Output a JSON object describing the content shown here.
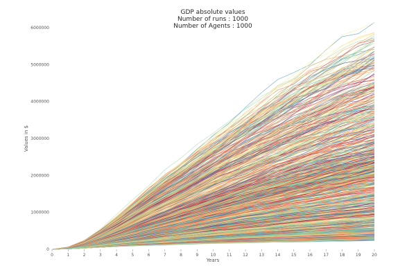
{
  "chart_data": {
    "type": "line",
    "title": [
      "GDP absolute values",
      "Number of runs : 1000",
      "Number of Agents : 1000"
    ],
    "xlabel": "Years",
    "ylabel": "Values in $",
    "xlim": [
      0,
      20
    ],
    "ylim": [
      0,
      6000000
    ],
    "x_ticks": [
      0,
      1,
      2,
      3,
      4,
      5,
      6,
      7,
      8,
      9,
      10,
      11,
      12,
      13,
      14,
      15,
      16,
      17,
      18,
      19,
      20
    ],
    "y_ticks": [
      0,
      1000000,
      2000000,
      3000000,
      4000000,
      5000000,
      6000000
    ],
    "y_tick_labels": [
      "0",
      "1000000",
      "2000000",
      "3000000",
      "4000000",
      "5000000",
      "6000000"
    ],
    "grid": false,
    "colormap": "Spectral",
    "series_count": 1000,
    "x": [
      0,
      1,
      2,
      3,
      4,
      5,
      6,
      7,
      8,
      9,
      10,
      11,
      12,
      13,
      14,
      15,
      16,
      17,
      18,
      19,
      20
    ],
    "envelope": {
      "max": [
        0,
        60000,
        240000,
        520000,
        870000,
        1250000,
        1620000,
        1980000,
        2320000,
        2660000,
        3000000,
        3320000,
        3640000,
        3960000,
        4260000,
        4540000,
        4810000,
        5060000,
        5300000,
        5520000,
        5750000
      ],
      "median": [
        0,
        35000,
        120000,
        230000,
        350000,
        470000,
        590000,
        710000,
        830000,
        950000,
        1070000,
        1190000,
        1310000,
        1420000,
        1530000,
        1640000,
        1740000,
        1840000,
        1940000,
        2030000,
        2120000
      ],
      "min": [
        0,
        10000,
        30000,
        55000,
        80000,
        100000,
        115000,
        130000,
        145000,
        160000,
        170000,
        180000,
        190000,
        200000,
        210000,
        220000,
        230000,
        240000,
        250000,
        260000,
        270000
      ]
    }
  }
}
